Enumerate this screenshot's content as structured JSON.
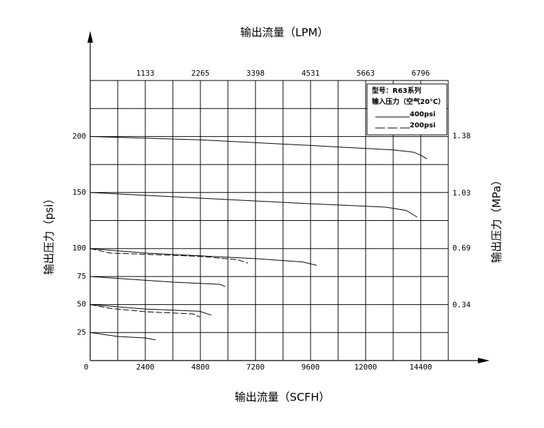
{
  "chart_data": {
    "type": "line",
    "title_top": "输出流量（LPM）",
    "x_label": "输出流量（SCFH）",
    "y_label": "输出压力（psi）",
    "y2_label": "输出压力（MPa）",
    "legend_title": [
      "型号：R63系列",
      "输入压力（空气20℃）"
    ],
    "xlim": [
      0,
      15600
    ],
    "xticks": [
      0,
      2400,
      4800,
      7200,
      9600,
      12000,
      14400
    ],
    "x2ticks": [
      {
        "value": 2400,
        "label": "1133"
      },
      {
        "value": 4800,
        "label": "2265"
      },
      {
        "value": 7200,
        "label": "3398"
      },
      {
        "value": 9600,
        "label": "4531"
      },
      {
        "value": 12000,
        "label": "5663"
      },
      {
        "value": 14400,
        "label": "6796"
      }
    ],
    "xgrid": [
      1200,
      2400,
      3600,
      4800,
      6000,
      7200,
      8400,
      9600,
      10800,
      12000,
      13200,
      14400,
      15600
    ],
    "ylim": [
      0,
      250
    ],
    "yticks": [
      25,
      50,
      75,
      100,
      150,
      200
    ],
    "ygrid": [
      25,
      50,
      75,
      100,
      125,
      150,
      175,
      200,
      225,
      250
    ],
    "y2lim": [
      0,
      1.724
    ],
    "y2ticks": [
      0.34,
      0.69,
      1.03,
      1.38
    ],
    "grid": true,
    "color": "#000000",
    "series": [
      {
        "name": "400psi",
        "dash": false,
        "x": [
          0,
          4800,
          9600,
          13200,
          14100,
          14430,
          14670
        ],
        "values": [
          200,
          197,
          192,
          188,
          186,
          183,
          180
        ]
      },
      {
        "name": "400psi",
        "dash": false,
        "x": [
          0,
          4800,
          9600,
          12870,
          13770,
          14250
        ],
        "values": [
          150,
          145,
          140,
          137,
          134,
          128
        ]
      },
      {
        "name": "400psi",
        "dash": false,
        "x": [
          0,
          2400,
          7200,
          9270,
          9870
        ],
        "values": [
          100,
          96,
          91,
          88,
          85
        ]
      },
      {
        "name": "400psi",
        "dash": false,
        "x": [
          0,
          3600,
          5670,
          5880
        ],
        "values": [
          75,
          70,
          68,
          66
        ]
      },
      {
        "name": "400psi",
        "dash": false,
        "x": [
          0,
          2400,
          4770,
          5280
        ],
        "values": [
          50,
          46,
          44,
          40.5
        ]
      },
      {
        "name": "400psi",
        "dash": false,
        "x": [
          0,
          1200,
          2400,
          2850
        ],
        "values": [
          25,
          21.5,
          20.2,
          18.4
        ]
      },
      {
        "name": "200psi",
        "dash": true,
        "x": [
          0,
          870,
          4800,
          6420,
          6870
        ],
        "values": [
          100,
          96,
          93,
          90,
          87
        ]
      },
      {
        "name": "200psi",
        "dash": true,
        "x": [
          0,
          870,
          2400,
          4470,
          4770
        ],
        "values": [
          50,
          46.6,
          43.6,
          41.7,
          39
        ]
      }
    ]
  }
}
